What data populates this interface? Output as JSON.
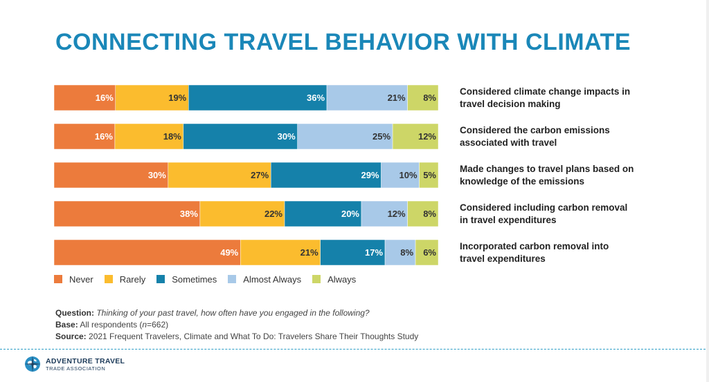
{
  "title": "CONNECTING TRAVEL BEHAVIOR WITH CLIMATE",
  "chart_data": {
    "type": "bar",
    "orientation": "horizontal",
    "stacked": true,
    "categories": [
      "Considered climate change impacts in travel decision making",
      "Considered the carbon emissions associated with travel",
      "Made changes to travel plans based on knowledge of the emissions",
      "Considered including carbon removal in travel expenditures",
      "Incorporated carbon removal into travel expenditures"
    ],
    "category_lines": [
      [
        "Considered climate change impacts in",
        "travel decision making"
      ],
      [
        "Considered the carbon emissions",
        "associated with travel"
      ],
      [
        "Made changes to travel plans based on",
        "knowledge of the emissions"
      ],
      [
        "Considered including carbon removal",
        "in travel expenditures"
      ],
      [
        "Incorporated carbon removal into",
        "travel expenditures"
      ]
    ],
    "series": [
      {
        "name": "Never",
        "color": "#ec7b3c",
        "values": [
          16,
          16,
          30,
          38,
          49
        ]
      },
      {
        "name": "Rarely",
        "color": "#fbbc2e",
        "values": [
          19,
          18,
          27,
          22,
          21
        ]
      },
      {
        "name": "Sometimes",
        "color": "#1581aa",
        "values": [
          36,
          30,
          29,
          20,
          17
        ]
      },
      {
        "name": "Almost Always",
        "color": "#a8c9e8",
        "values": [
          21,
          25,
          10,
          12,
          8
        ]
      },
      {
        "name": "Always",
        "color": "#cdd667",
        "values": [
          8,
          12,
          5,
          8,
          6
        ]
      }
    ],
    "unit": "%",
    "legend_position": "bottom-left"
  },
  "notes": {
    "question_label": "Question:",
    "question_text": "Thinking of your past travel, how often have you engaged in the following?",
    "base_label": "Base:",
    "base_text_pre": "All respondents (",
    "base_text_n": "n",
    "base_text_post": "=662)",
    "source_label": "Source:",
    "source_text": "2021 Frequent Travelers, Climate and What To Do: Travelers Share Their Thoughts Study"
  },
  "logo": {
    "name": "ADVENTURE TRAVEL",
    "subtitle": "TRADE ASSOCIATION",
    "icon": "globe-compass-icon"
  }
}
